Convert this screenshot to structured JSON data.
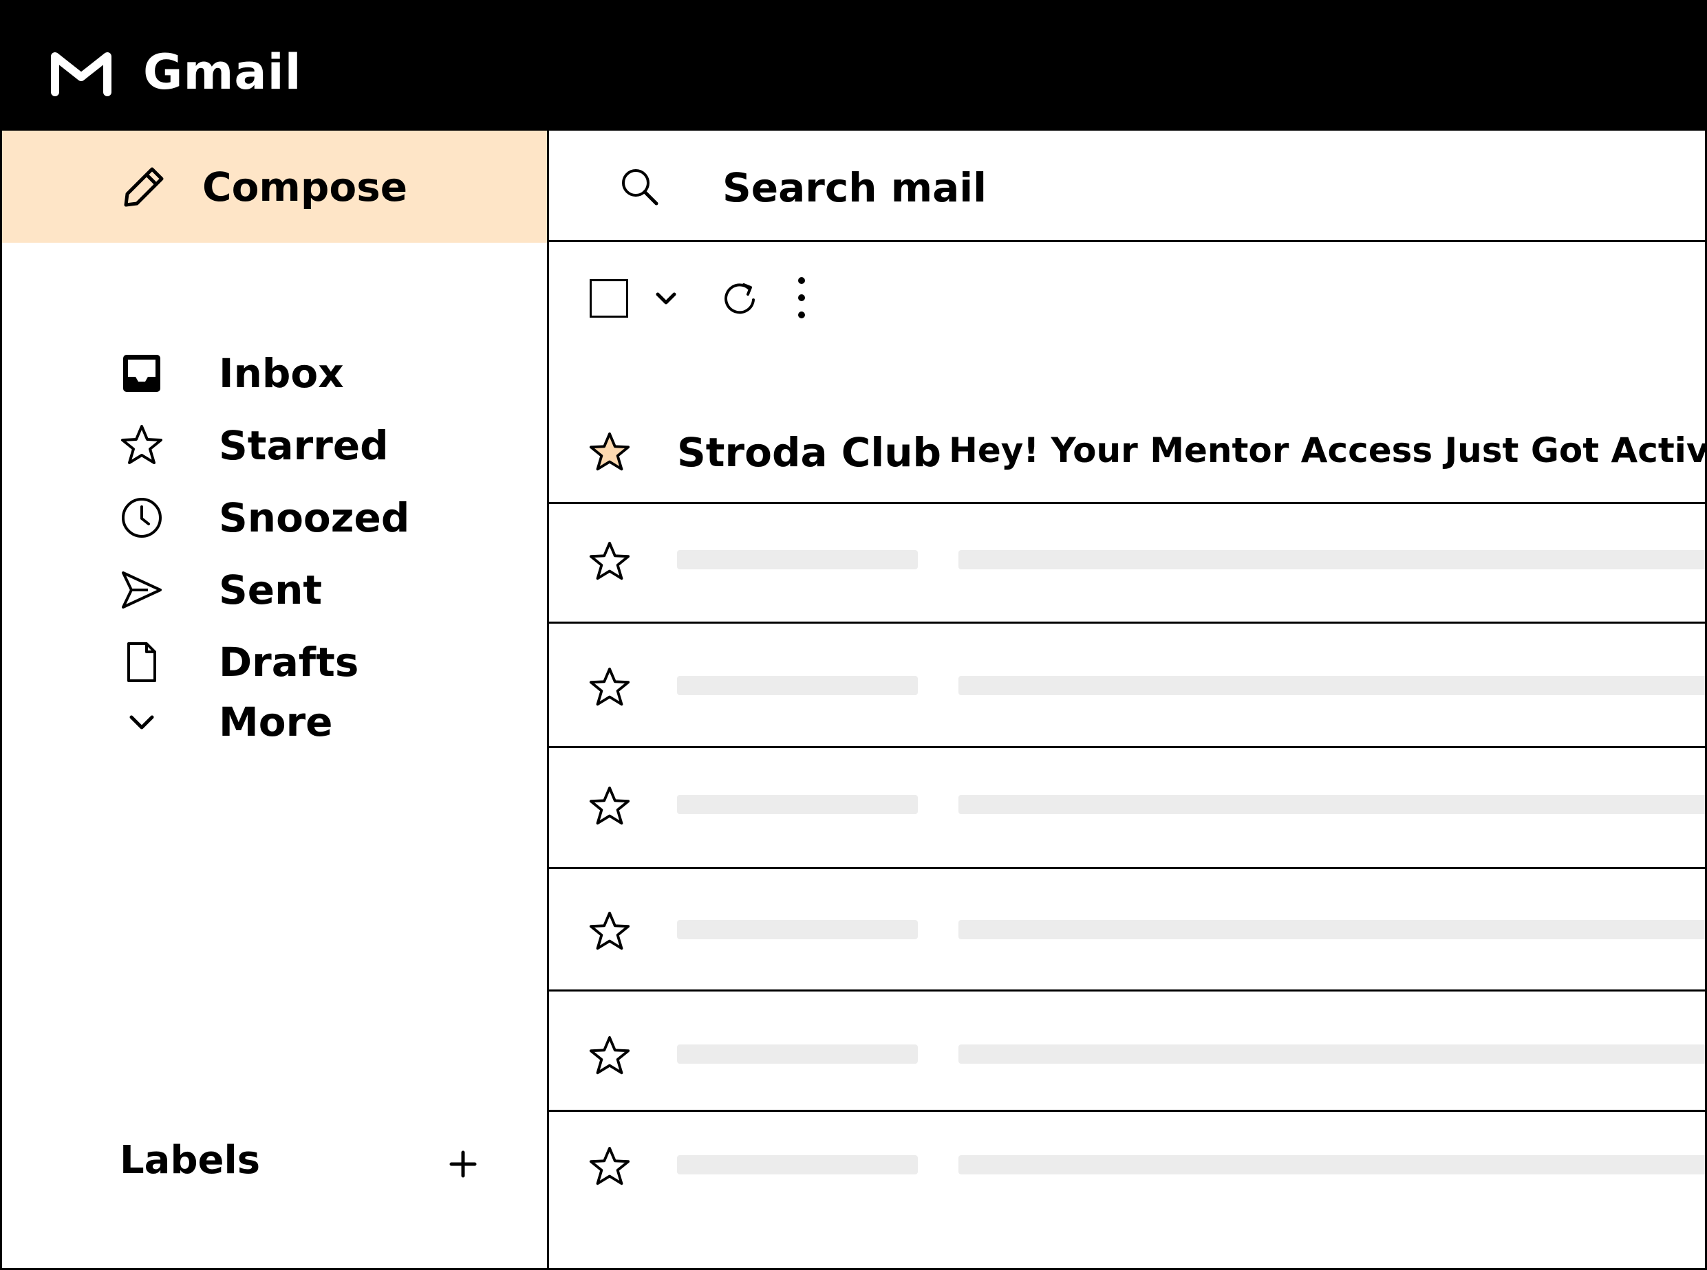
{
  "header": {
    "app_title": "Gmail",
    "logo_icon": "gmail-m-icon",
    "background": "#000000"
  },
  "sidebar": {
    "compose": {
      "label": "Compose",
      "icon": "pencil-icon",
      "background": "#fee5c7"
    },
    "items": [
      {
        "label": "Inbox",
        "icon": "inbox-icon"
      },
      {
        "label": "Starred",
        "icon": "star-icon"
      },
      {
        "label": "Snoozed",
        "icon": "clock-icon"
      },
      {
        "label": "Sent",
        "icon": "send-icon"
      },
      {
        "label": "Drafts",
        "icon": "document-icon"
      },
      {
        "label": "More",
        "icon": "chevron-down-icon"
      }
    ],
    "labels": {
      "title": "Labels",
      "add_icon": "plus-icon"
    }
  },
  "search": {
    "placeholder": "Search mail",
    "icon": "search-icon"
  },
  "toolbar": {
    "select_all_checked": false,
    "icons": [
      "checkbox-icon",
      "chevron-down-icon",
      "refresh-icon",
      "more-vertical-icon"
    ]
  },
  "emails": [
    {
      "sender": "Stroda Club",
      "subject": "Hey! Your Mentor Access Just Got Activated.",
      "starred": true,
      "star_fill": "#fcd9b0"
    },
    {
      "sender": "",
      "subject": "",
      "starred": false,
      "placeholder": true
    },
    {
      "sender": "",
      "subject": "",
      "starred": false,
      "placeholder": true
    },
    {
      "sender": "",
      "subject": "",
      "starred": false,
      "placeholder": true
    },
    {
      "sender": "",
      "subject": "",
      "starred": false,
      "placeholder": true
    },
    {
      "sender": "",
      "subject": "",
      "starred": false,
      "placeholder": true
    },
    {
      "sender": "",
      "subject": "",
      "starred": false,
      "placeholder": true
    }
  ]
}
